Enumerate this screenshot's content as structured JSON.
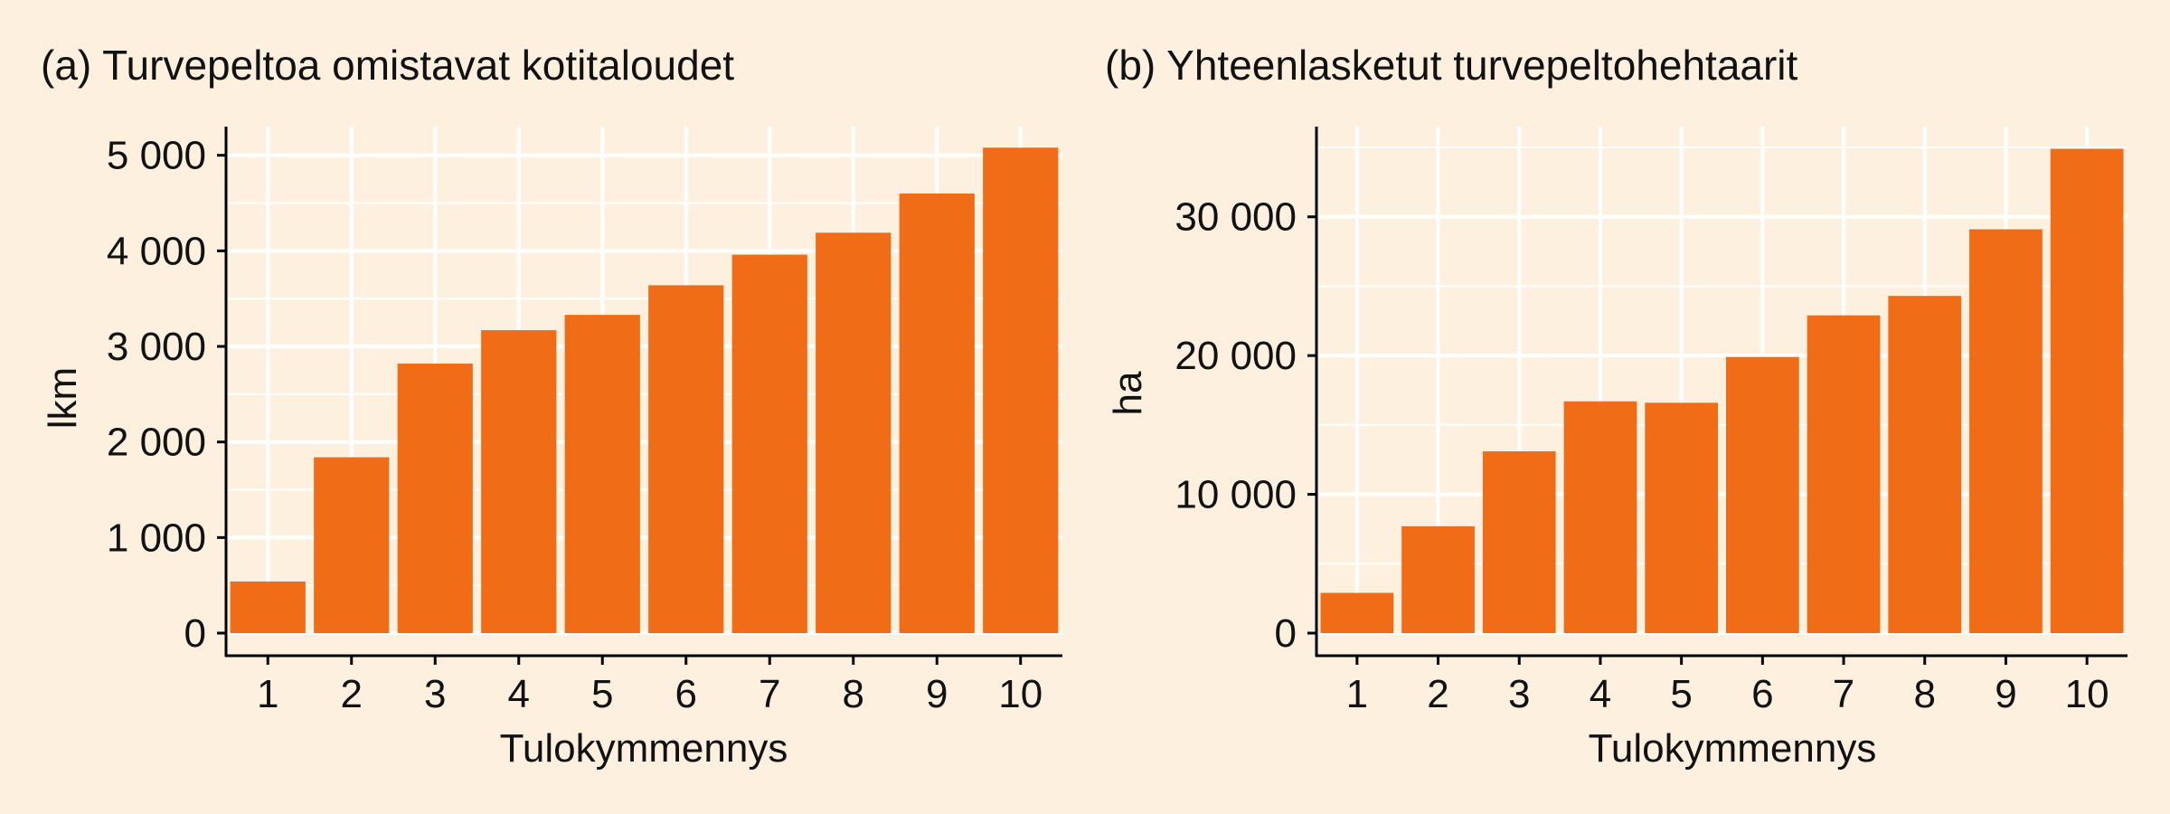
{
  "colors": {
    "background": "#fdf0df",
    "bar": "#f16c16",
    "grid": "#ffffff",
    "axis": "#000000"
  },
  "chart_data": [
    {
      "type": "bar",
      "title": "(a) Turvepeltoa omistavat kotitaloudet",
      "xlabel": "Tulokymmennys",
      "ylabel": "lkm",
      "categories": [
        "1",
        "2",
        "3",
        "4",
        "5",
        "6",
        "7",
        "8",
        "9",
        "10"
      ],
      "values": [
        540,
        1840,
        2820,
        3170,
        3330,
        3640,
        3960,
        4190,
        4600,
        5080
      ],
      "ylim": [
        0,
        5300
      ],
      "yticks": [
        0,
        1000,
        2000,
        3000,
        4000,
        5000
      ],
      "ytick_labels": [
        "0",
        "1 000",
        "2 000",
        "3 000",
        "4 000",
        "5 000"
      ],
      "grid": true
    },
    {
      "type": "bar",
      "title": "(b) Yhteenlasketut turvepeltohehtaarit",
      "xlabel": "Tulokymmennys",
      "ylabel": "ha",
      "categories": [
        "1",
        "2",
        "3",
        "4",
        "5",
        "6",
        "7",
        "8",
        "9",
        "10"
      ],
      "values": [
        2900,
        7700,
        13100,
        16700,
        16600,
        19900,
        22900,
        24300,
        29100,
        34900
      ],
      "ylim": [
        0,
        36500
      ],
      "yticks": [
        0,
        10000,
        20000,
        30000
      ],
      "ytick_labels": [
        "0",
        "10 000",
        "20 000",
        "30 000"
      ],
      "grid": true
    }
  ]
}
